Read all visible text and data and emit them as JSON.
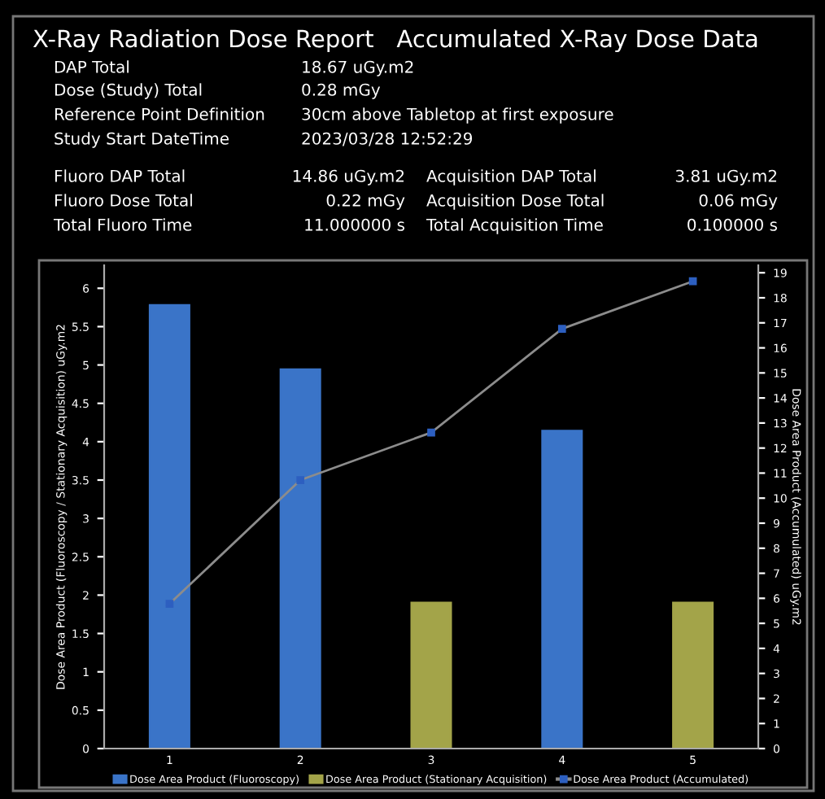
{
  "chart_data": [
    {
      "type": "other",
      "title": "X-Ray Radiation Dose Report   Accumulated X-Ray Dose Data",
      "annotations": [
        "DAP Total",
        "18.67 uGy.m2",
        "Dose (Study) Total",
        "0.28 mGy",
        "Reference Point Definition",
        "30cm above Tabletop at first exposure",
        "Study Start DateTime",
        "2023/03/28 12:52:29",
        "Fluoro DAP Total",
        "14.86 uGy.m2",
        "Acquisition DAP Total",
        "3.81 uGy.m2",
        "Fluoro Dose Total",
        "0.22 mGy",
        "Acquisition Dose Total",
        "0.06 mGy",
        "Total Fluoro Time",
        "11.000000 s",
        "Total Acquisition Time",
        "0.100000 s"
      ]
    },
    {
      "type": "bar",
      "categories": [
        "1",
        "2",
        "3",
        "4",
        "5"
      ],
      "ylabel": "Dose Area Product (Fluoroscopy / Stationary Acquisition) uGy.m2",
      "y2label": "Dose Area Product (Accumulated) uGy.m2",
      "series": [
        {
          "name": "Dose Area Product (Fluoroscopy)",
          "color": "#3a74c8",
          "values": [
            5.78,
            4.94,
            null,
            4.14,
            null
          ]
        },
        {
          "name": "Dose Area Product (Stationary Acquisition)",
          "color": "#a3a449",
          "values": [
            null,
            null,
            1.9,
            null,
            1.9
          ]
        },
        {
          "name": "Dose Area Product (Accumulated)",
          "type": "line",
          "axis": "y2",
          "color": "#8c8c8c",
          "marker": "square",
          "values": [
            5.78,
            10.72,
            12.62,
            16.76,
            18.66
          ]
        }
      ],
      "ylim": [
        0,
        6.3
      ],
      "yticks": [
        0,
        0.5,
        1,
        1.5,
        2,
        2.5,
        3,
        3.5,
        4,
        4.5,
        5,
        5.5,
        6
      ],
      "y2lim": [
        0,
        19.3
      ],
      "y2ticks": [
        0,
        1,
        2,
        3,
        4,
        5,
        6,
        7,
        8,
        9,
        10,
        11,
        12,
        13,
        14,
        15,
        16,
        17,
        18,
        19
      ],
      "grid": false,
      "legend": "bottom"
    }
  ]
}
